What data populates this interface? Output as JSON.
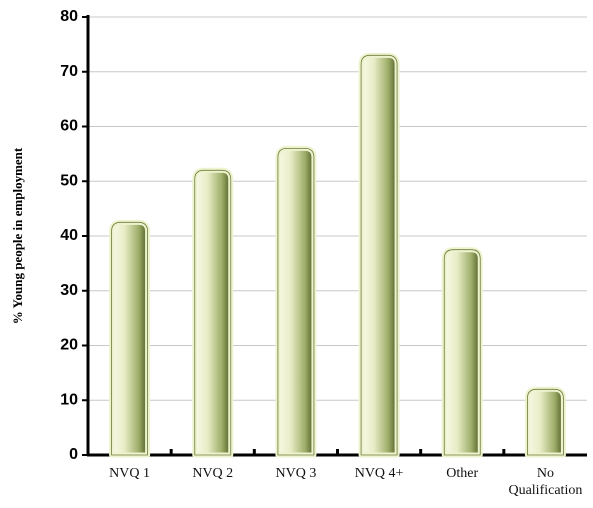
{
  "chart_data": {
    "type": "bar",
    "y_label": "% Young people in employment",
    "categories": [
      "NVQ 1",
      "NVQ 2",
      "NVQ 3",
      "NVQ 4+",
      "Other",
      "No Qualification"
    ],
    "values": [
      42.5,
      52,
      56,
      73,
      37.5,
      12
    ],
    "ylim": [
      0,
      80
    ],
    "yticks": [
      0,
      10,
      20,
      30,
      40,
      50,
      60,
      70,
      80
    ],
    "grid": true
  }
}
